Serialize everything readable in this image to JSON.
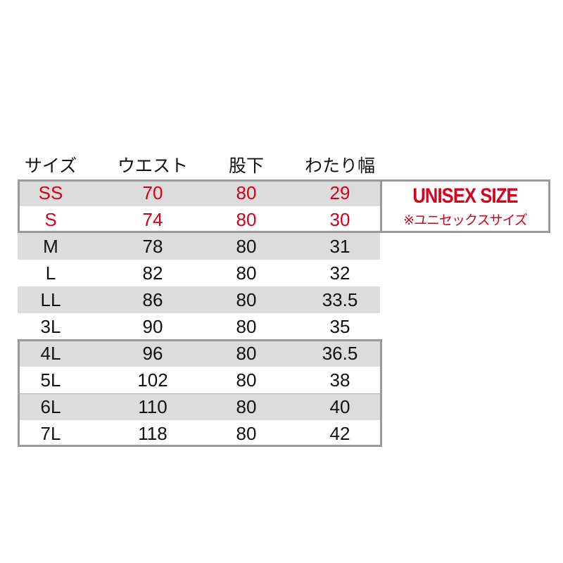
{
  "headers": [
    "サイズ",
    "ウエスト",
    "股下",
    "わたり幅"
  ],
  "rows": [
    {
      "size": "SS",
      "waist": "70",
      "inseam": "80",
      "thigh": "29",
      "highlight": true
    },
    {
      "size": "S",
      "waist": "74",
      "inseam": "80",
      "thigh": "30",
      "highlight": true
    },
    {
      "size": "M",
      "waist": "78",
      "inseam": "80",
      "thigh": "31"
    },
    {
      "size": "L",
      "waist": "82",
      "inseam": "80",
      "thigh": "32"
    },
    {
      "size": "LL",
      "waist": "86",
      "inseam": "80",
      "thigh": "33.5"
    },
    {
      "size": "3L",
      "waist": "90",
      "inseam": "80",
      "thigh": "35"
    },
    {
      "size": "4L",
      "waist": "96",
      "inseam": "80",
      "thigh": "36.5"
    },
    {
      "size": "5L",
      "waist": "102",
      "inseam": "80",
      "thigh": "38"
    },
    {
      "size": "6L",
      "waist": "110",
      "inseam": "80",
      "thigh": "40"
    },
    {
      "size": "7L",
      "waist": "118",
      "inseam": "80",
      "thigh": "42"
    }
  ],
  "unisex": {
    "title": "UNISEX SIZE",
    "subtitle": "※ユニセックスサイズ"
  },
  "colors": {
    "accent": "#d7001c",
    "stripe": "#dcdcdc",
    "border": "#9a9a9a"
  }
}
